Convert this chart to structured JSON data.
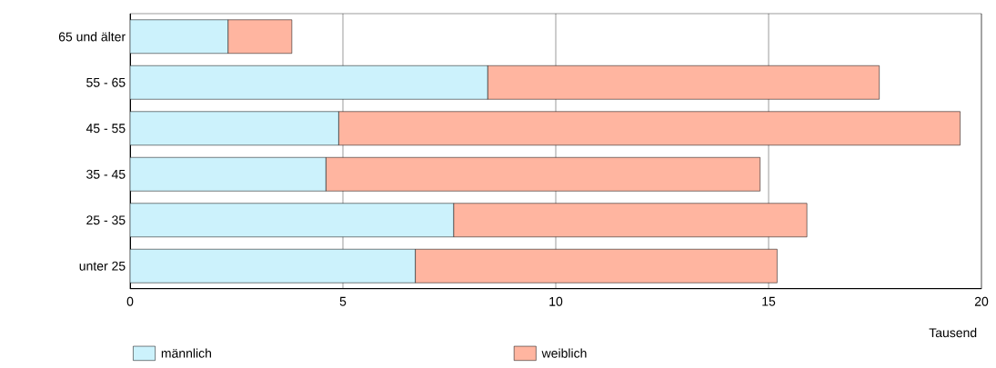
{
  "chart_data": {
    "type": "bar",
    "orientation": "horizontal",
    "stacked": true,
    "categories": [
      "65 und älter",
      "55  -  65",
      "45  -  55",
      "35  -  45",
      "25  -  35",
      "unter 25"
    ],
    "series": [
      {
        "name": "männlich",
        "color": "#ccf2fc",
        "values": [
          2.3,
          8.4,
          4.9,
          4.6,
          7.6,
          6.7
        ]
      },
      {
        "name": "weiblich",
        "color": "#ffb5a0",
        "values": [
          1.5,
          9.2,
          14.6,
          10.2,
          8.3,
          8.5
        ]
      }
    ],
    "xlim": [
      0,
      20
    ],
    "xticks": [
      0,
      5,
      10,
      15,
      20
    ],
    "xlabel": "Tausend",
    "grid": "x",
    "legend": "bottom"
  }
}
